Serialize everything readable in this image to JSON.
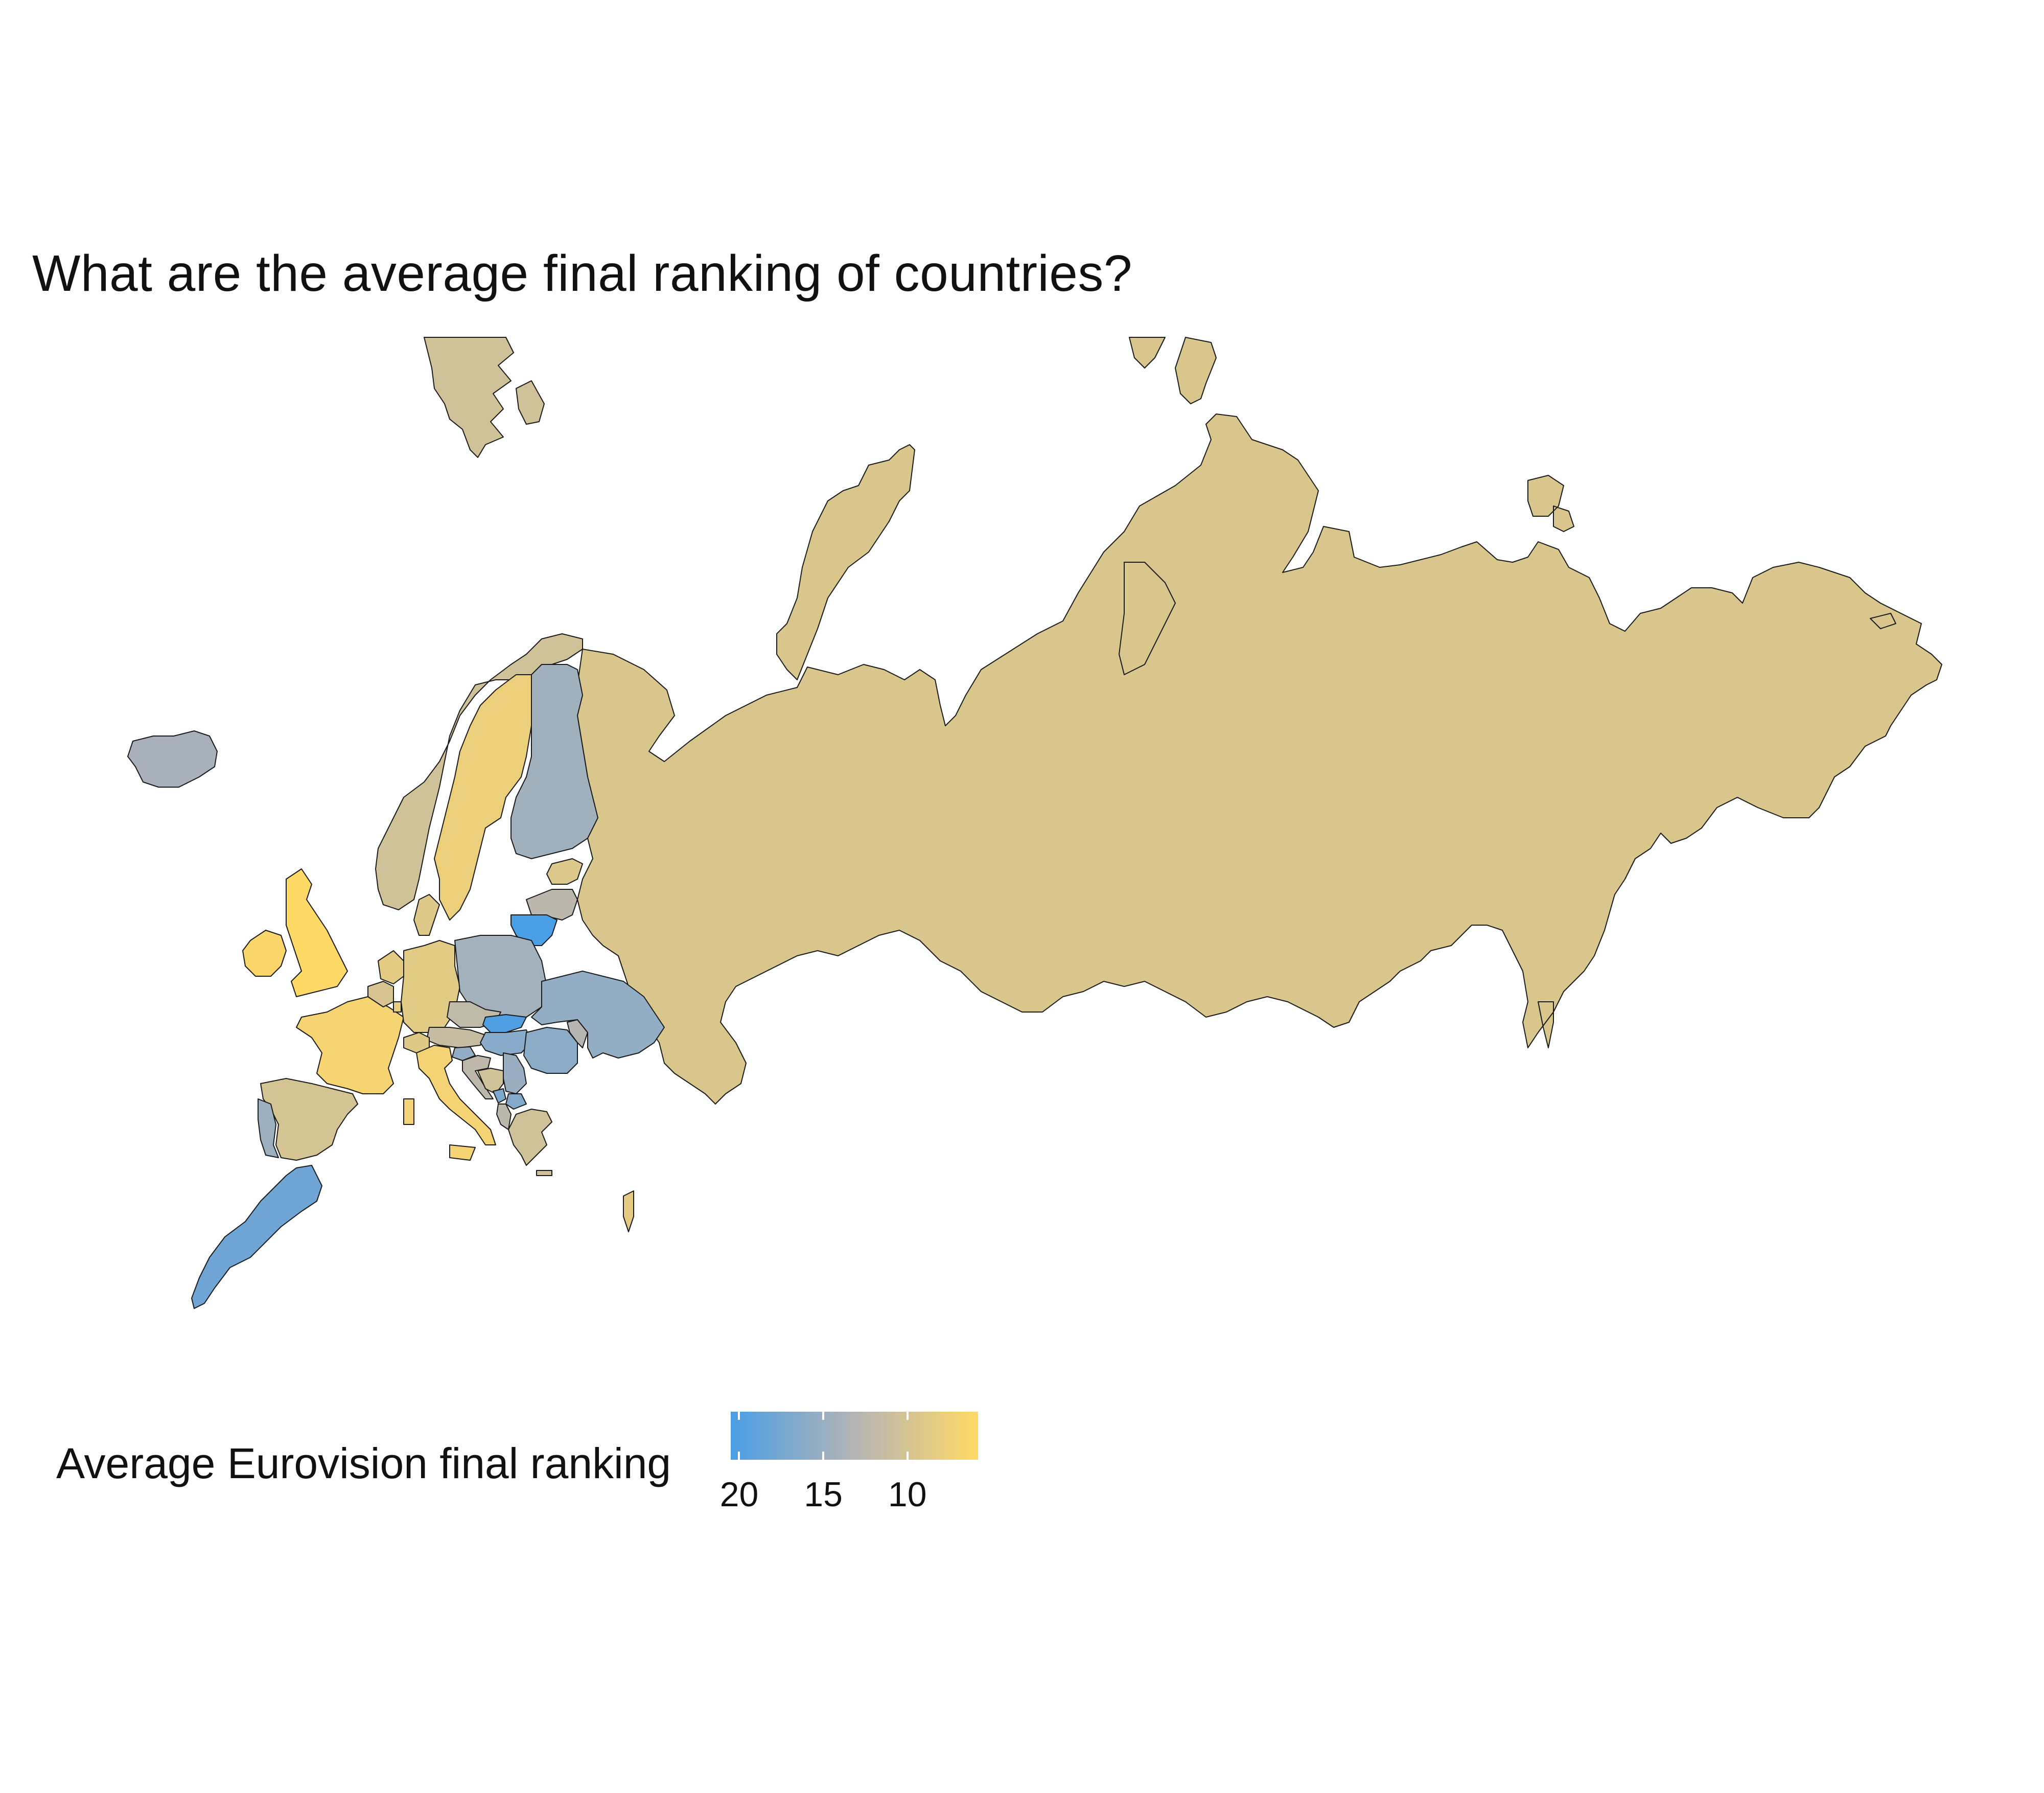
{
  "title": "What are the average final ranking of countries?",
  "legend": {
    "title": "Average Eurovision final ranking",
    "ticks": [
      {
        "value": 20,
        "label": "20"
      },
      {
        "value": 15,
        "label": "15"
      },
      {
        "value": 10,
        "label": "10"
      }
    ],
    "range": [
      20.5,
      5.8
    ],
    "color_low_rank": "#4a9ee6",
    "color_mid_rank": "#b4b4b4",
    "color_high_rank": "#ffd966"
  },
  "countries": [
    {
      "name": "Russia",
      "value": 9.5
    },
    {
      "name": "Norway",
      "value": 10.5
    },
    {
      "name": "Sweden",
      "value": 7.8
    },
    {
      "name": "Finland",
      "value": 14.5
    },
    {
      "name": "Iceland",
      "value": 14.0
    },
    {
      "name": "United Kingdom",
      "value": 5.8
    },
    {
      "name": "Ireland",
      "value": 6.3
    },
    {
      "name": "France",
      "value": 6.8
    },
    {
      "name": "Spain",
      "value": 10.0
    },
    {
      "name": "Portugal",
      "value": 14.8
    },
    {
      "name": "Germany",
      "value": 8.6
    },
    {
      "name": "Netherlands",
      "value": 8.5
    },
    {
      "name": "Belgium",
      "value": 9.8
    },
    {
      "name": "Luxembourg",
      "value": 8.0
    },
    {
      "name": "Denmark",
      "value": 9.0
    },
    {
      "name": "Switzerland",
      "value": 8.9
    },
    {
      "name": "Italy",
      "value": 7.0
    },
    {
      "name": "Austria",
      "value": 11.5
    },
    {
      "name": "Poland",
      "value": 14.3
    },
    {
      "name": "Czechia",
      "value": 12.0
    },
    {
      "name": "Slovakia",
      "value": 20.0
    },
    {
      "name": "Hungary",
      "value": 16.3
    },
    {
      "name": "Slovenia",
      "value": 15.5
    },
    {
      "name": "Croatia",
      "value": 12.3
    },
    {
      "name": "Bosnia and Herzegovina",
      "value": 10.5
    },
    {
      "name": "Serbia",
      "value": 15.0
    },
    {
      "name": "Romania",
      "value": 16.0
    },
    {
      "name": "Ukraine",
      "value": 15.5
    },
    {
      "name": "Moldova",
      "value": 13.0
    },
    {
      "name": "Lithuania",
      "value": 20.5
    },
    {
      "name": "Latvia",
      "value": 12.5
    },
    {
      "name": "Estonia",
      "value": 9.2
    },
    {
      "name": "Greece",
      "value": 10.5
    },
    {
      "name": "North Macedonia",
      "value": 16.5
    },
    {
      "name": "Albania",
      "value": 12.5
    },
    {
      "name": "Montenegro",
      "value": 17.0
    },
    {
      "name": "Malta",
      "value": 8.5
    },
    {
      "name": "Morocco",
      "value": 18.0
    },
    {
      "name": "Svalbard",
      "value": 10.5
    }
  ]
}
